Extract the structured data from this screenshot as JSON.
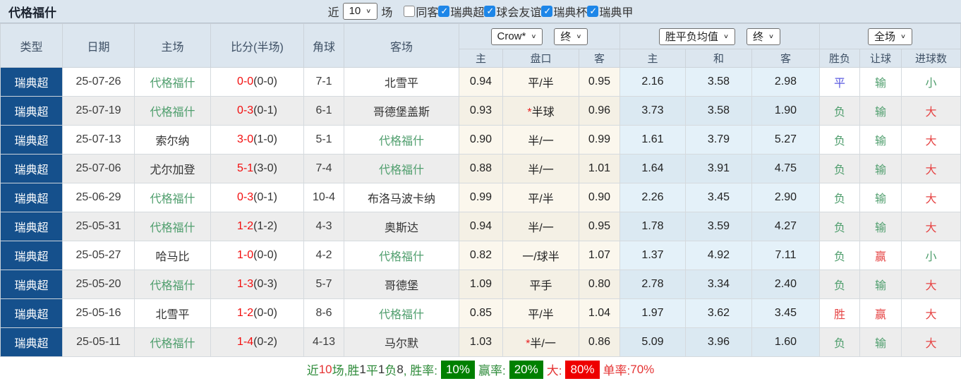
{
  "topbar": {
    "title": "代格福什",
    "near_label": "近",
    "near_select_value": "10",
    "matches_label": "场",
    "checkboxes": [
      {
        "label": "同客",
        "checked": false
      },
      {
        "label": "瑞典超",
        "checked": true
      },
      {
        "label": "球会友谊",
        "checked": true
      },
      {
        "label": "瑞典杯",
        "checked": true
      },
      {
        "label": "瑞典甲",
        "checked": true
      }
    ]
  },
  "table": {
    "selects": {
      "bookmaker": "Crow*",
      "bookmaker_stage": "终",
      "euro_source": "胜平负均值",
      "euro_stage": "终",
      "scope": "全场"
    },
    "headers": {
      "type": "类型",
      "date": "日期",
      "home": "主场",
      "score": "比分(半场)",
      "corner": "角球",
      "away": "客场",
      "asian_home": "主",
      "asian_handicap": "盘口",
      "asian_away": "客",
      "euro_home": "主",
      "euro_draw": "和",
      "euro_away": "客",
      "result": "胜负",
      "handicap_result": "让球",
      "goals": "进球数"
    },
    "rows": [
      {
        "type": "瑞典超",
        "date": "25-07-26",
        "home": "代格福什",
        "home_cls": "t-green",
        "score_ft": "0-0",
        "score_ht": "(0-0)",
        "corner": "7-1",
        "away": "北雪平",
        "away_cls": "",
        "odds_home": "0.94",
        "handicap_star": "",
        "handicap": "平/半",
        "odds_away": "0.95",
        "euro_home": "2.16",
        "euro_draw": "3.58",
        "euro_away": "2.98",
        "result": "平",
        "result_cls": "c-blue",
        "handicap_result": "输",
        "handicap_result_cls": "c-green",
        "goals": "小",
        "goals_cls": "c-green"
      },
      {
        "type": "瑞典超",
        "date": "25-07-19",
        "home": "代格福什",
        "home_cls": "t-green",
        "score_ft": "0-3",
        "score_ht": "(0-1)",
        "corner": "6-1",
        "away": "哥德堡盖斯",
        "away_cls": "",
        "odds_home": "0.93",
        "handicap_star": "*",
        "handicap": "半球",
        "odds_away": "0.96",
        "euro_home": "3.73",
        "euro_draw": "3.58",
        "euro_away": "1.90",
        "result": "负",
        "result_cls": "c-green",
        "handicap_result": "输",
        "handicap_result_cls": "c-green",
        "goals": "大",
        "goals_cls": "c-red"
      },
      {
        "type": "瑞典超",
        "date": "25-07-13",
        "home": "索尔纳",
        "home_cls": "",
        "score_ft": "3-0",
        "score_ht": "(1-0)",
        "corner": "5-1",
        "away": "代格福什",
        "away_cls": "t-green",
        "odds_home": "0.90",
        "handicap_star": "",
        "handicap": "半/一",
        "odds_away": "0.99",
        "euro_home": "1.61",
        "euro_draw": "3.79",
        "euro_away": "5.27",
        "result": "负",
        "result_cls": "c-green",
        "handicap_result": "输",
        "handicap_result_cls": "c-green",
        "goals": "大",
        "goals_cls": "c-red"
      },
      {
        "type": "瑞典超",
        "date": "25-07-06",
        "home": "尤尔加登",
        "home_cls": "",
        "score_ft": "5-1",
        "score_ht": "(3-0)",
        "corner": "7-4",
        "away": "代格福什",
        "away_cls": "t-green",
        "odds_home": "0.88",
        "handicap_star": "",
        "handicap": "半/一",
        "odds_away": "1.01",
        "euro_home": "1.64",
        "euro_draw": "3.91",
        "euro_away": "4.75",
        "result": "负",
        "result_cls": "c-green",
        "handicap_result": "输",
        "handicap_result_cls": "c-green",
        "goals": "大",
        "goals_cls": "c-red"
      },
      {
        "type": "瑞典超",
        "date": "25-06-29",
        "home": "代格福什",
        "home_cls": "t-green",
        "score_ft": "0-3",
        "score_ht": "(0-1)",
        "corner": "10-4",
        "away": "布洛马波卡纳",
        "away_cls": "",
        "odds_home": "0.99",
        "handicap_star": "",
        "handicap": "平/半",
        "odds_away": "0.90",
        "euro_home": "2.26",
        "euro_draw": "3.45",
        "euro_away": "2.90",
        "result": "负",
        "result_cls": "c-green",
        "handicap_result": "输",
        "handicap_result_cls": "c-green",
        "goals": "大",
        "goals_cls": "c-red"
      },
      {
        "type": "瑞典超",
        "date": "25-05-31",
        "home": "代格福什",
        "home_cls": "t-green",
        "score_ft": "1-2",
        "score_ht": "(1-2)",
        "corner": "4-3",
        "away": "奥斯达",
        "away_cls": "",
        "odds_home": "0.94",
        "handicap_star": "",
        "handicap": "半/一",
        "odds_away": "0.95",
        "euro_home": "1.78",
        "euro_draw": "3.59",
        "euro_away": "4.27",
        "result": "负",
        "result_cls": "c-green",
        "handicap_result": "输",
        "handicap_result_cls": "c-green",
        "goals": "大",
        "goals_cls": "c-red"
      },
      {
        "type": "瑞典超",
        "date": "25-05-27",
        "home": "哈马比",
        "home_cls": "",
        "score_ft": "1-0",
        "score_ht": "(0-0)",
        "corner": "4-2",
        "away": "代格福什",
        "away_cls": "t-green",
        "odds_home": "0.82",
        "handicap_star": "",
        "handicap": "一/球半",
        "odds_away": "1.07",
        "euro_home": "1.37",
        "euro_draw": "4.92",
        "euro_away": "7.11",
        "result": "负",
        "result_cls": "c-green",
        "handicap_result": "赢",
        "handicap_result_cls": "c-red",
        "goals": "小",
        "goals_cls": "c-green"
      },
      {
        "type": "瑞典超",
        "date": "25-05-20",
        "home": "代格福什",
        "home_cls": "t-green",
        "score_ft": "1-3",
        "score_ht": "(0-3)",
        "corner": "5-7",
        "away": "哥德堡",
        "away_cls": "",
        "odds_home": "1.09",
        "handicap_star": "",
        "handicap": "平手",
        "odds_away": "0.80",
        "euro_home": "2.78",
        "euro_draw": "3.34",
        "euro_away": "2.40",
        "result": "负",
        "result_cls": "c-green",
        "handicap_result": "输",
        "handicap_result_cls": "c-green",
        "goals": "大",
        "goals_cls": "c-red"
      },
      {
        "type": "瑞典超",
        "date": "25-05-16",
        "home": "北雪平",
        "home_cls": "",
        "score_ft": "1-2",
        "score_ht": "(0-0)",
        "corner": "8-6",
        "away": "代格福什",
        "away_cls": "t-green",
        "odds_home": "0.85",
        "handicap_star": "",
        "handicap": "平/半",
        "odds_away": "1.04",
        "euro_home": "1.97",
        "euro_draw": "3.62",
        "euro_away": "3.45",
        "result": "胜",
        "result_cls": "c-red",
        "handicap_result": "赢",
        "handicap_result_cls": "c-red",
        "goals": "大",
        "goals_cls": "c-red"
      },
      {
        "type": "瑞典超",
        "date": "25-05-11",
        "home": "代格福什",
        "home_cls": "t-green",
        "score_ft": "1-4",
        "score_ht": "(0-2)",
        "corner": "4-13",
        "away": "马尔默",
        "away_cls": "",
        "odds_home": "1.03",
        "handicap_star": "*",
        "handicap": "半/一",
        "odds_away": "0.86",
        "euro_home": "5.09",
        "euro_draw": "3.96",
        "euro_away": "1.60",
        "result": "负",
        "result_cls": "c-green",
        "handicap_result": "输",
        "handicap_result_cls": "c-green",
        "goals": "大",
        "goals_cls": "c-red"
      }
    ]
  },
  "footer": {
    "segments": [
      {
        "text": "近",
        "cls": "fg"
      },
      {
        "text": "10",
        "cls": "fr"
      },
      {
        "text": "场,胜",
        "cls": "fg"
      },
      {
        "text": "1",
        "cls": "fk"
      },
      {
        "text": "平",
        "cls": "fg"
      },
      {
        "text": "1",
        "cls": "fk"
      },
      {
        "text": "负",
        "cls": "fg"
      },
      {
        "text": "8",
        "cls": "fk"
      },
      {
        "text": ", 胜率:",
        "cls": "fg"
      },
      {
        "text": "10%",
        "cls": "badge badge-g"
      },
      {
        "text": "赢率:",
        "cls": "fg"
      },
      {
        "text": "20%",
        "cls": "badge badge-g"
      },
      {
        "text": "大:",
        "cls": "fr"
      },
      {
        "text": "80%",
        "cls": "badge badge-r"
      },
      {
        "text": "单率:",
        "cls": "fr"
      },
      {
        "text": "70%",
        "cls": "fr"
      }
    ]
  },
  "colors": {
    "type_column_bg": "#15508c",
    "header_bg": "#dce6ef",
    "team_green": "#4f9e6d",
    "score_red": "#f20d0d",
    "result_red": "#e64545",
    "result_green": "#4f9e6d",
    "draw_blue": "#5a5ae0",
    "asian_odds_bg": "#fbf7ed",
    "euro_odds_bg": "#e4f1f9",
    "checkbox_blue": "#1d86e8",
    "badge_green": "#008000",
    "badge_red": "#ee0000"
  }
}
